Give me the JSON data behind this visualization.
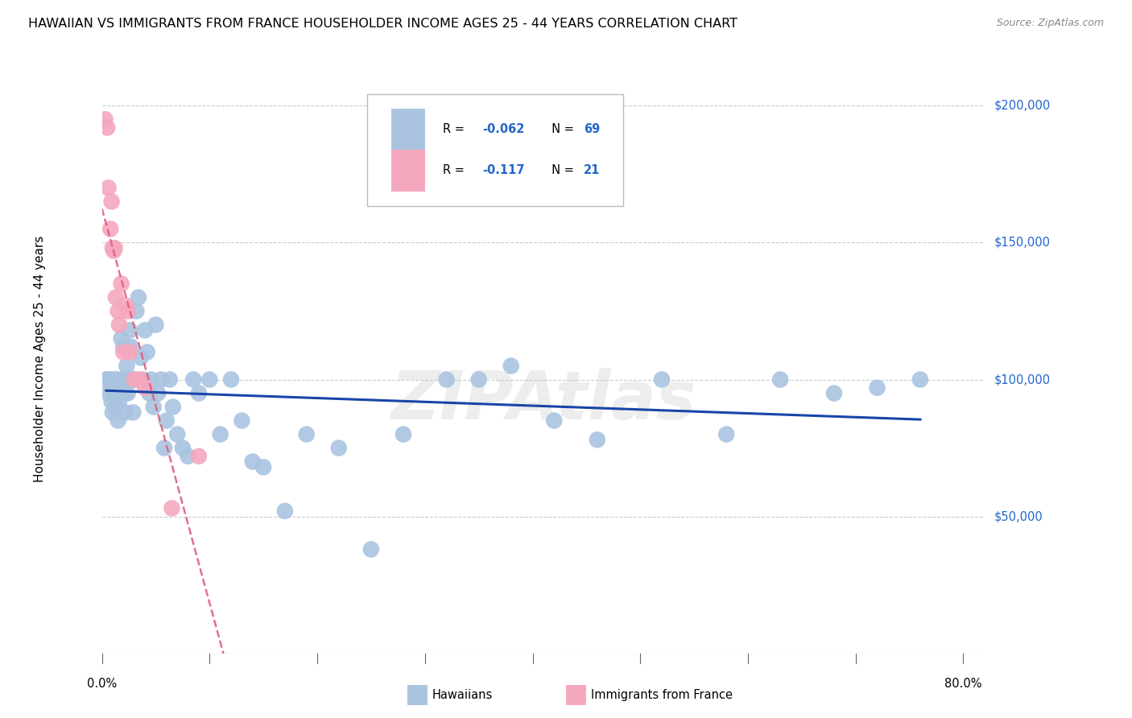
{
  "title": "HAWAIIAN VS IMMIGRANTS FROM FRANCE HOUSEHOLDER INCOME AGES 25 - 44 YEARS CORRELATION CHART",
  "source": "Source: ZipAtlas.com",
  "ylabel": "Householder Income Ages 25 - 44 years",
  "watermark": "ZIPAtlas",
  "hawaiian_color": "#aac4e0",
  "france_color": "#f4a8be",
  "trend_hawaiian_color": "#1845a8",
  "trend_france_color": "#e06080",
  "label_color": "#2266cc",
  "grid_color": "#cccccc",
  "hawaiian_x": [
    0.004,
    0.005,
    0.006,
    0.007,
    0.008,
    0.009,
    0.01,
    0.011,
    0.012,
    0.013,
    0.014,
    0.015,
    0.016,
    0.018,
    0.019,
    0.02,
    0.021,
    0.022,
    0.023,
    0.024,
    0.025,
    0.026,
    0.027,
    0.028,
    0.029,
    0.03,
    0.032,
    0.034,
    0.036,
    0.038,
    0.04,
    0.042,
    0.044,
    0.046,
    0.048,
    0.05,
    0.052,
    0.055,
    0.058,
    0.06,
    0.063,
    0.066,
    0.07,
    0.075,
    0.08,
    0.085,
    0.09,
    0.1,
    0.11,
    0.12,
    0.13,
    0.14,
    0.15,
    0.17,
    0.19,
    0.22,
    0.25,
    0.28,
    0.32,
    0.35,
    0.38,
    0.42,
    0.46,
    0.52,
    0.58,
    0.63,
    0.68,
    0.72,
    0.76
  ],
  "hawaiian_y": [
    100000,
    100000,
    95000,
    100000,
    100000,
    92000,
    88000,
    95000,
    100000,
    90000,
    100000,
    85000,
    92000,
    115000,
    100000,
    112000,
    95000,
    88000,
    105000,
    95000,
    100000,
    118000,
    112000,
    100000,
    88000,
    100000,
    125000,
    130000,
    108000,
    100000,
    118000,
    110000,
    95000,
    100000,
    90000,
    120000,
    95000,
    100000,
    75000,
    85000,
    100000,
    90000,
    80000,
    75000,
    72000,
    100000,
    95000,
    100000,
    80000,
    100000,
    85000,
    70000,
    68000,
    52000,
    80000,
    75000,
    38000,
    80000,
    100000,
    100000,
    105000,
    85000,
    78000,
    100000,
    80000,
    100000,
    95000,
    97000,
    100000
  ],
  "france_x": [
    0.003,
    0.005,
    0.006,
    0.008,
    0.009,
    0.01,
    0.011,
    0.012,
    0.013,
    0.015,
    0.016,
    0.018,
    0.02,
    0.022,
    0.024,
    0.026,
    0.03,
    0.035,
    0.04,
    0.065,
    0.09
  ],
  "france_y": [
    195000,
    192000,
    170000,
    155000,
    165000,
    148000,
    147000,
    148000,
    130000,
    125000,
    120000,
    135000,
    110000,
    127000,
    125000,
    110000,
    100000,
    100000,
    97000,
    53000,
    72000
  ],
  "x_tick_positions": [
    0.0,
    0.1,
    0.2,
    0.3,
    0.4,
    0.5,
    0.6,
    0.7,
    0.8
  ],
  "y_tick_positions": [
    50000,
    100000,
    150000,
    200000
  ],
  "y_tick_labels": [
    "$50,000",
    "$100,000",
    "$150,000",
    "$200,000"
  ],
  "xlim": [
    0.0,
    0.82
  ],
  "ylim": [
    0,
    215000
  ]
}
